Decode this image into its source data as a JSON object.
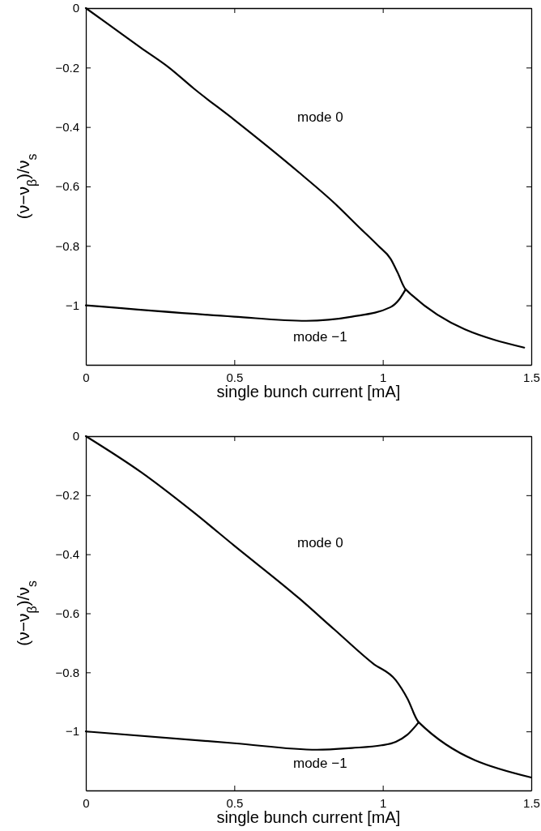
{
  "chart_data": [
    {
      "type": "line",
      "xlabel": "single bunch current [mA]",
      "ylabel": "(ν−ν$_{β}$)/ν$_{s}$",
      "xlim": [
        0,
        1.5
      ],
      "ylim": [
        -1.2,
        0
      ],
      "xticks": [
        0,
        0.5,
        1,
        1.5
      ],
      "yticks": [
        {
          "value": -1,
          "label": "−1"
        },
        {
          "value": -0.8,
          "label": "−0.8"
        },
        {
          "value": -0.6,
          "label": "−0.6"
        },
        {
          "value": -0.4,
          "label": "−0.4"
        },
        {
          "value": -0.2,
          "label": "−0.2"
        },
        0
      ],
      "grid": false,
      "legend": false,
      "line_style": "solid",
      "marker": "none",
      "series": [
        {
          "name": "mode 0",
          "color": "#000000",
          "x": [
            0,
            0.067,
            0.186,
            0.28,
            0.363,
            0.5,
            0.718,
            0.837,
            0.92,
            0.985,
            1.026,
            1.05,
            1.077,
            1.476
          ],
          "values": [
            0,
            -0.048,
            -0.134,
            -0.2,
            -0.27,
            -0.376,
            -0.553,
            -0.656,
            -0.737,
            -0.8,
            -0.843,
            -0.89,
            -0.946,
            -1.142
          ]
        },
        {
          "name": "mode −1",
          "color": "#000000",
          "x": [
            0,
            0.5,
            0.742,
            0.896,
            1.026,
            1.056,
            1.077
          ],
          "values": [
            -1,
            -1.038,
            -1.052,
            -1.038,
            -1.006,
            -0.979,
            -0.946
          ]
        }
      ]
    },
    {
      "type": "line",
      "xlabel": "single bunch current [mA]",
      "ylabel": "(ν−ν$_{β}$)/ν$_{s}$",
      "xlim": [
        0,
        1.5
      ],
      "ylim": [
        -1.2,
        0
      ],
      "xticks": [
        0,
        0.5,
        1,
        1.5
      ],
      "yticks": [
        {
          "value": -1,
          "label": "−1"
        },
        {
          "value": -0.8,
          "label": "−0.8"
        },
        {
          "value": -0.6,
          "label": "−0.6"
        },
        {
          "value": -0.4,
          "label": "−0.4"
        },
        {
          "value": -0.2,
          "label": "−0.2"
        },
        0
      ],
      "grid": false,
      "legend": false,
      "line_style": "solid",
      "marker": "none",
      "series": [
        {
          "name": "mode 0",
          "color": "#000000",
          "x": [
            0,
            0.186,
            0.363,
            0.5,
            0.718,
            0.837,
            0.967,
            1.044,
            1.083,
            1.121,
            1.5
          ],
          "values": [
            0,
            -0.122,
            -0.258,
            -0.371,
            -0.549,
            -0.655,
            -0.77,
            -0.827,
            -0.889,
            -0.969,
            -1.156
          ]
        },
        {
          "name": "mode −1",
          "color": "#000000",
          "x": [
            0,
            0.5,
            0.778,
            0.896,
            0.996,
            1.044,
            1.083,
            1.121
          ],
          "values": [
            -1,
            -1.04,
            -1.062,
            -1.056,
            -1.047,
            -1.035,
            -1.011,
            -0.969
          ]
        }
      ]
    }
  ]
}
